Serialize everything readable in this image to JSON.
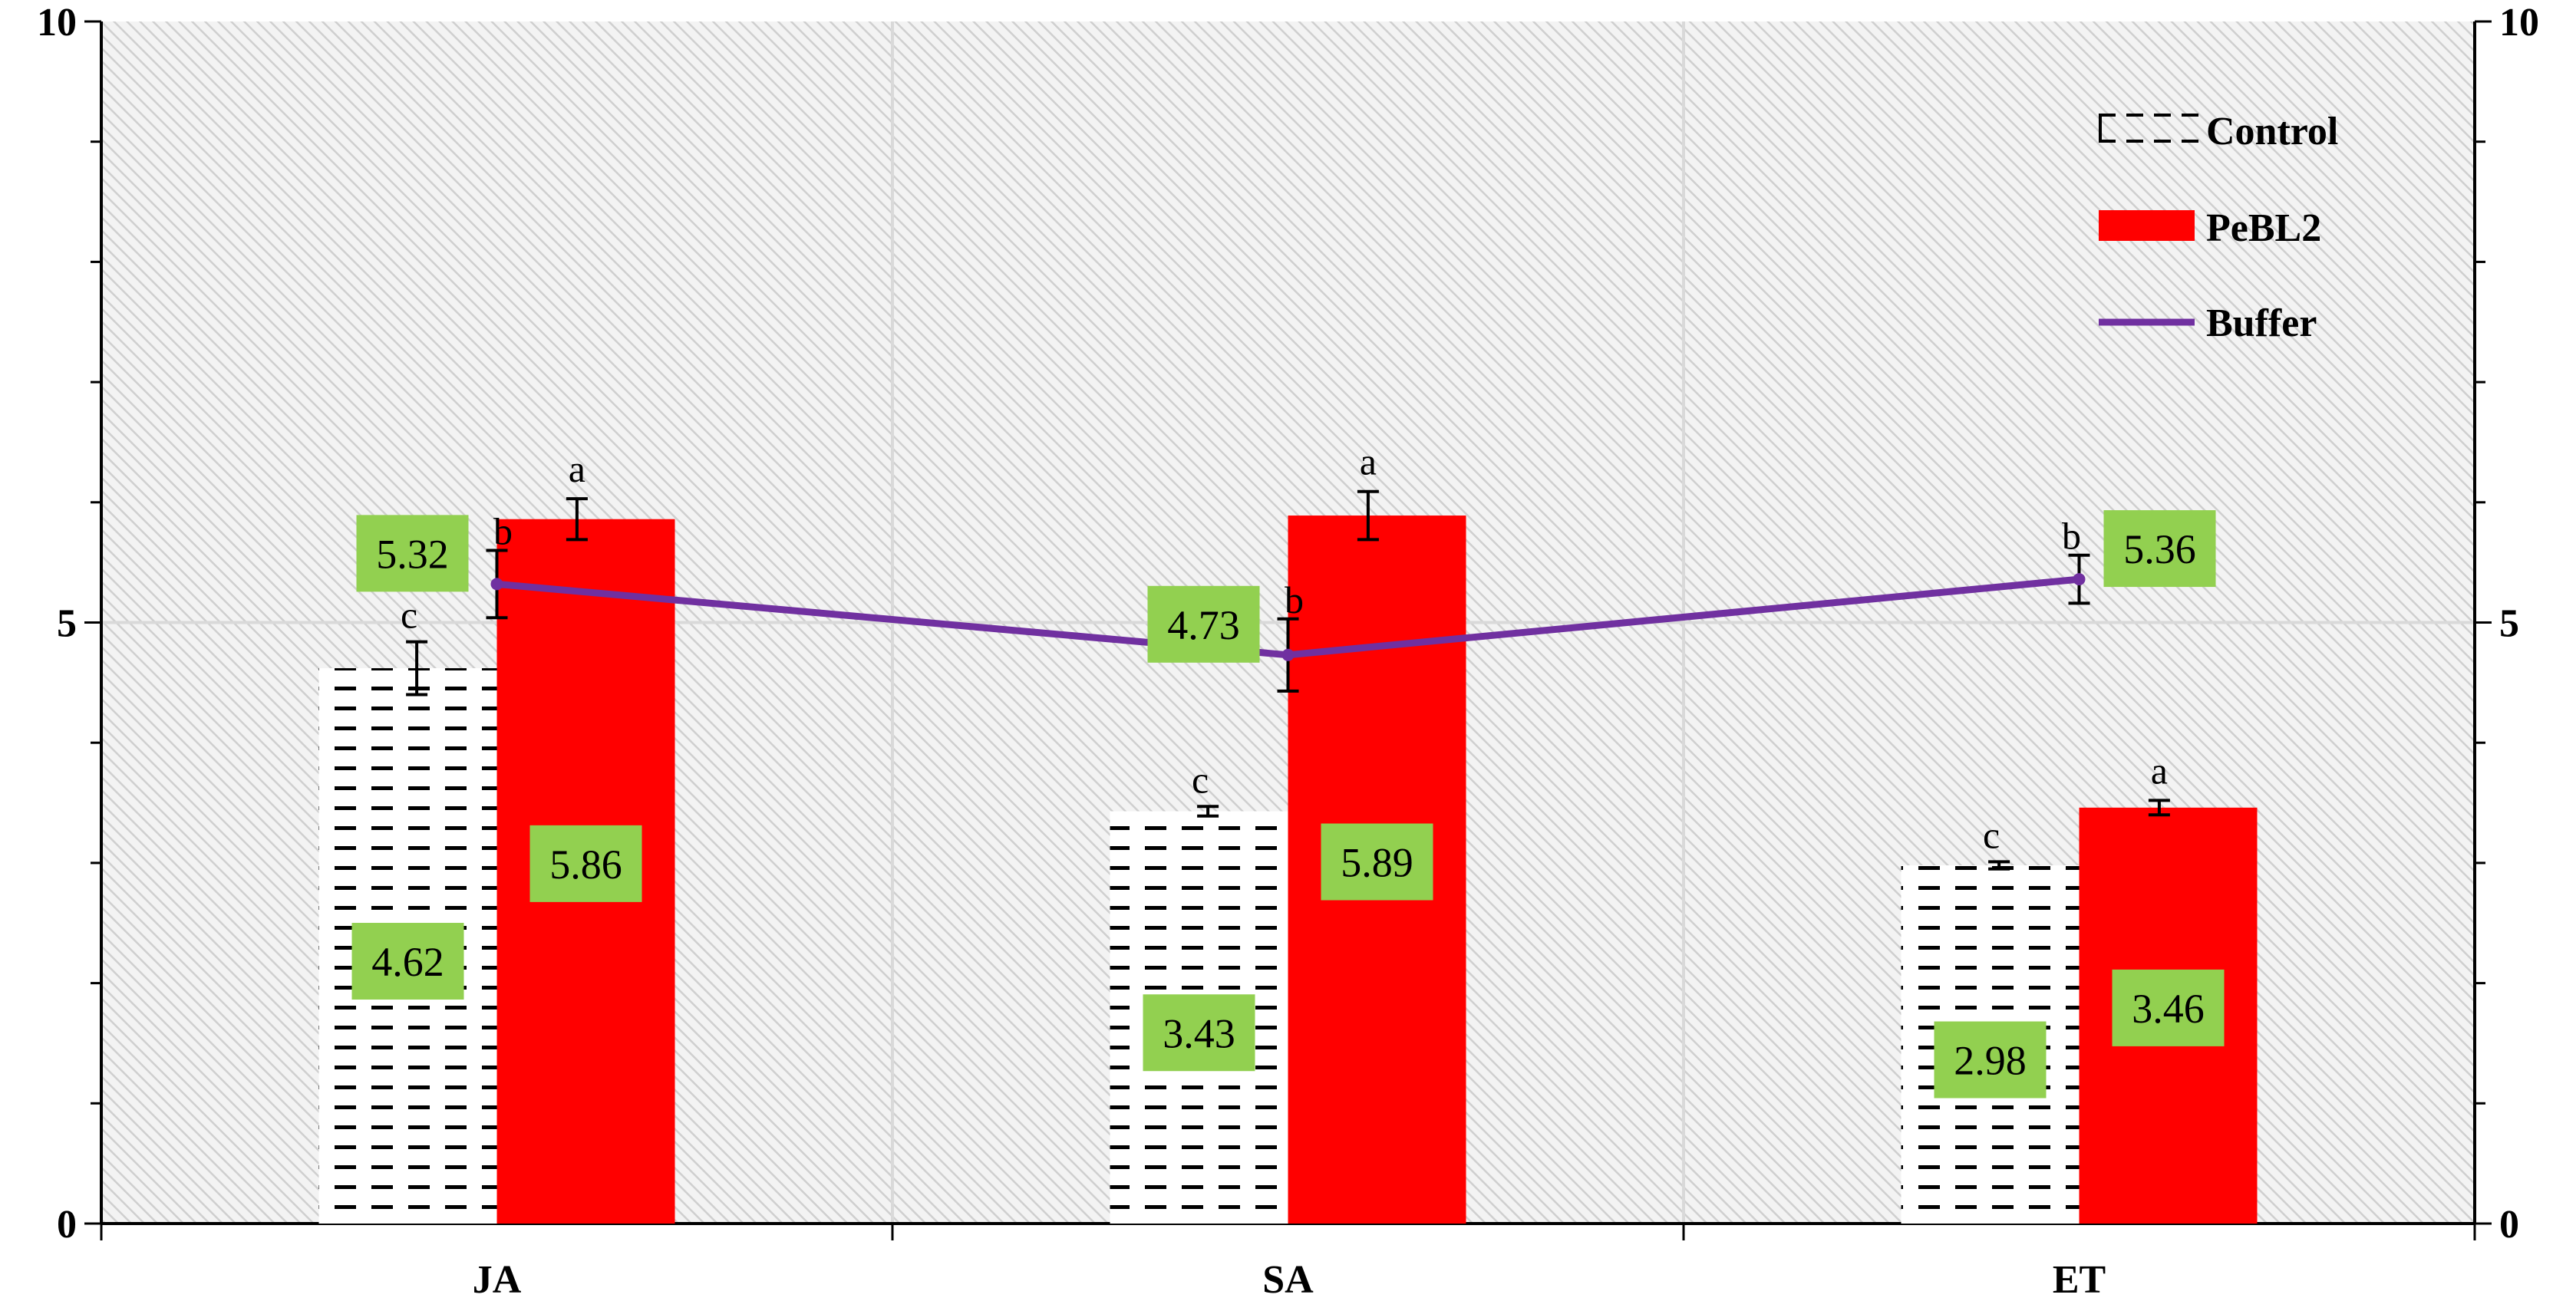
{
  "chart_data": {
    "type": "bar",
    "categories": [
      "JA",
      "SA",
      "ET"
    ],
    "ylim": [
      0,
      10
    ],
    "y_ticks": [
      "0",
      "5",
      "10"
    ],
    "secondary_y_ticks": [
      "0",
      "5",
      "10"
    ],
    "grid": true,
    "legend_placement": "top-right",
    "series": [
      {
        "name": "Control",
        "kind": "bar",
        "pattern": "dashed-horizontal",
        "values": [
          4.62,
          3.43,
          2.98
        ],
        "labels": [
          "4.62",
          "3.43",
          "2.98"
        ],
        "errors": [
          0.22,
          0.04,
          0.03
        ],
        "letters": [
          "c",
          "c",
          "c"
        ]
      },
      {
        "name": "PeBL2",
        "kind": "bar",
        "color": "#ff0000",
        "values": [
          5.86,
          5.89,
          3.46
        ],
        "labels": [
          "5.86",
          "5.89",
          "3.46"
        ],
        "errors": [
          0.17,
          0.2,
          0.06
        ],
        "letters": [
          "a",
          "a",
          "a"
        ]
      },
      {
        "name": "Buffer",
        "kind": "line",
        "color": "#7030a0",
        "values": [
          5.32,
          4.73,
          5.36
        ],
        "labels": [
          "5.32",
          "4.73",
          "5.36"
        ],
        "errors": [
          0.28,
          0.3,
          0.2
        ],
        "letters": [
          "b",
          "b",
          "b"
        ]
      }
    ],
    "colors": {
      "label_box": "#92d050",
      "plot_background": "#f2f2f2",
      "hatch": "#d0d0d0",
      "gridline": "#d9d9d9"
    }
  }
}
